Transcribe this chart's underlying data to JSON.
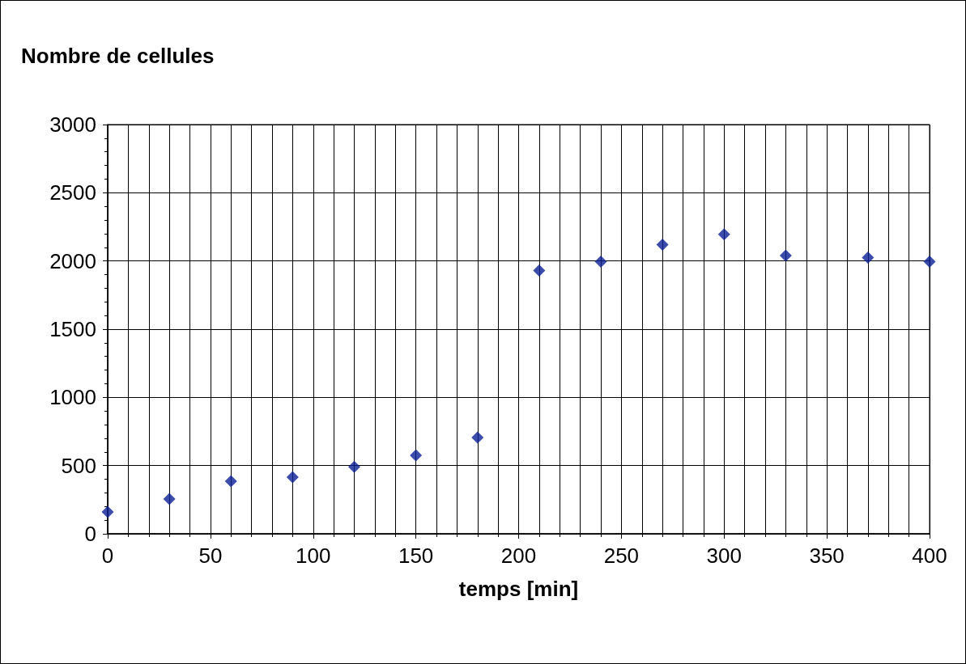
{
  "chart_data": {
    "type": "scatter",
    "title": "Nombre de cellules",
    "xlabel": "temps [min]",
    "x": [
      0,
      30,
      60,
      90,
      120,
      150,
      180,
      210,
      240,
      270,
      300,
      330,
      370,
      400
    ],
    "values": [
      160,
      255,
      385,
      415,
      490,
      575,
      705,
      1930,
      1995,
      2120,
      2195,
      2040,
      2025,
      1995
    ],
    "color": "#0a1f96",
    "marker": "diamond",
    "grid": true,
    "xlim": [
      0,
      400
    ],
    "xticks": [
      0,
      50,
      100,
      150,
      200,
      250,
      300,
      350,
      400
    ],
    "ylim": [
      0,
      3000
    ],
    "yticks": [
      0,
      500,
      1000,
      1500,
      2000,
      2500,
      3000
    ]
  }
}
